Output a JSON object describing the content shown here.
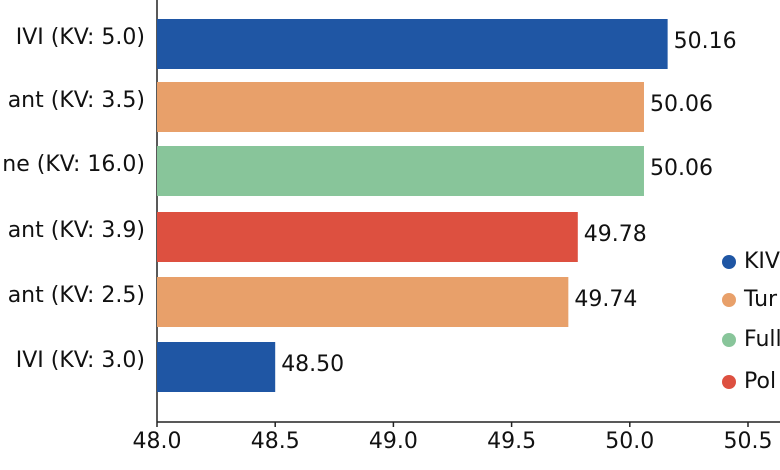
{
  "chart_data": {
    "type": "barh",
    "categories": [
      "IVI (KV: 5.0)",
      "ant (KV: 3.5)",
      "ne (KV: 16.0)",
      "ant (KV: 3.9)",
      "ant (KV: 2.5)",
      "IVI (KV: 3.0)"
    ],
    "values": [
      50.16,
      50.06,
      50.06,
      49.78,
      49.74,
      48.5
    ],
    "value_labels": [
      "50.16",
      "50.06",
      "50.06",
      "49.78",
      "49.74",
      "48.50"
    ],
    "colors": [
      "#1f56a4",
      "#e8a06a",
      "#88c59a",
      "#dd5040",
      "#e8a06a",
      "#1f56a4"
    ],
    "xlim": [
      48,
      50.5
    ],
    "xticks": [
      {
        "value": 48,
        "label": "48.0"
      },
      48.5,
      {
        "value": 49,
        "label": "49.0"
      },
      49.5,
      {
        "value": 50,
        "label": "50.0"
      },
      50.5
    ],
    "legend": [
      {
        "label": "KIV",
        "color": "#1f56a4"
      },
      {
        "label": "Tur",
        "color": "#e8a06a"
      },
      {
        "label": "Full",
        "color": "#88c59a"
      },
      {
        "label": "Pol",
        "color": "#dd5040"
      }
    ]
  }
}
